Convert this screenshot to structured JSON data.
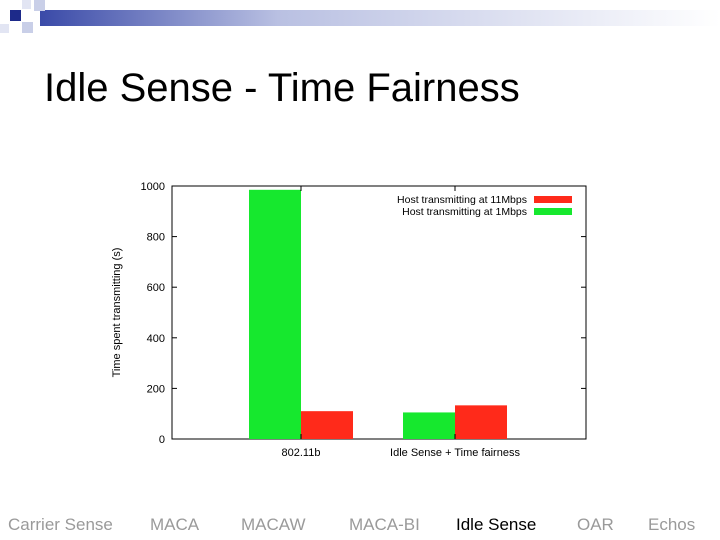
{
  "slide": {
    "title": "Idle Sense - Time Fairness"
  },
  "colors": {
    "deco_dark": "#1d2a8a",
    "deco_light": "#c9cfe8",
    "bar_11mbps": "#ff2a1a",
    "bar_1mbps": "#16e82e",
    "nav_inactive": "#9a9a9a",
    "nav_active": "#000000"
  },
  "chart_data": {
    "type": "bar",
    "title": "",
    "xlabel": "",
    "ylabel": "Time spent transmitting (s)",
    "categories": [
      "802.11b",
      "Idle Sense + Time fairness"
    ],
    "ylim": [
      0,
      1000
    ],
    "yticks": [
      0,
      200,
      400,
      600,
      800,
      1000
    ],
    "grid": false,
    "legend_position": "top-right",
    "series": [
      {
        "name": "Host transmitting at 1Mbps",
        "color": "#16e82e",
        "values": [
          985,
          105
        ]
      },
      {
        "name": "Host transmitting at 11Mbps",
        "color": "#ff2a1a",
        "values": [
          110,
          133
        ]
      }
    ],
    "legend_order": [
      "Host transmitting at 11Mbps",
      "Host transmitting at 1Mbps"
    ]
  },
  "nav": {
    "items": [
      {
        "label": "Carrier Sense",
        "active": false
      },
      {
        "label": "MACA",
        "active": false
      },
      {
        "label": "MACAW",
        "active": false
      },
      {
        "label": "MACA-BI",
        "active": false
      },
      {
        "label": "Idle Sense",
        "active": true
      },
      {
        "label": "OAR",
        "active": false
      },
      {
        "label": "Echos",
        "active": false
      }
    ]
  }
}
